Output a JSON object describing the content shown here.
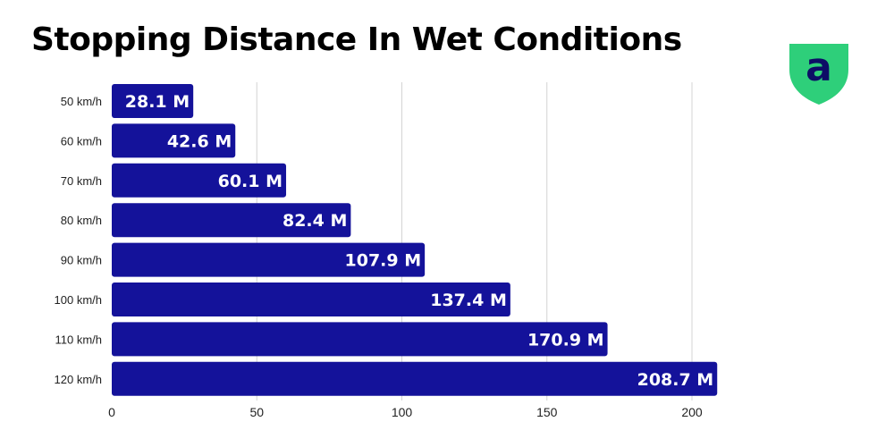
{
  "chart_data": {
    "type": "bar",
    "orientation": "horizontal",
    "title": "Stopping Distance In Wet Conditions",
    "categories": [
      "50 km/h",
      "60 km/h",
      "70 km/h",
      "80 km/h",
      "90 km/h",
      "100 km/h",
      "110 km/h",
      "120 km/h"
    ],
    "values": [
      28.1,
      42.6,
      60.1,
      82.4,
      107.9,
      137.4,
      170.9,
      208.7
    ],
    "value_labels": [
      "28.1 M",
      "42.6 M",
      "60.1 M",
      "82.4 M",
      "107.9 M",
      "137.4 M",
      "170.9 M",
      "208.7 M"
    ],
    "x_ticks": [
      0,
      50,
      100,
      150,
      200
    ],
    "xlim": [
      0,
      210
    ],
    "grid": true,
    "bar_color": "#14129a",
    "grid_color": "#d4d4d4"
  },
  "logo": {
    "letter": "a",
    "color": "#2ecf7a",
    "letter_color": "#0d0d66"
  }
}
